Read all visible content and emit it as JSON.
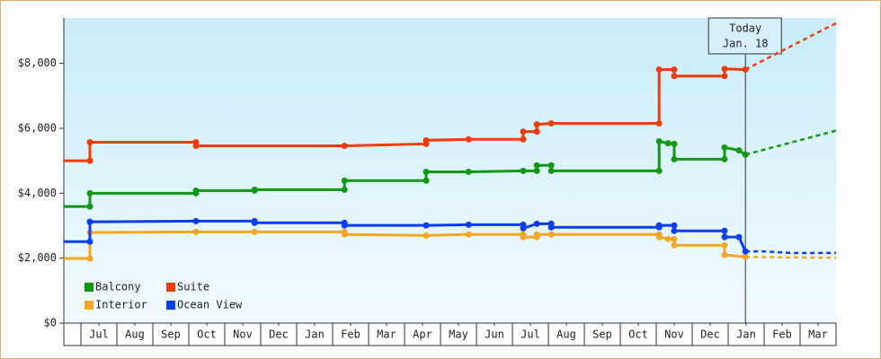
{
  "chart_data": {
    "type": "line",
    "step_markers": true,
    "xlim": [
      0.525,
      22
    ],
    "ylim": [
      0,
      9400
    ],
    "xticks": [
      {
        "value": 1.5,
        "label": "Jul"
      },
      {
        "value": 2.5,
        "label": "Aug"
      },
      {
        "value": 3.5,
        "label": "Sep"
      },
      {
        "value": 4.5,
        "label": "Oct"
      },
      {
        "value": 5.5,
        "label": "Nov"
      },
      {
        "value": 6.5,
        "label": "Dec"
      },
      {
        "value": 7.5,
        "label": "Jan"
      },
      {
        "value": 8.5,
        "label": "Feb"
      },
      {
        "value": 9.5,
        "label": "Mar"
      },
      {
        "value": 10.5,
        "label": "Apr"
      },
      {
        "value": 11.5,
        "label": "May"
      },
      {
        "value": 12.5,
        "label": "Jun"
      },
      {
        "value": 13.5,
        "label": "Jul"
      },
      {
        "value": 14.5,
        "label": "Aug"
      },
      {
        "value": 15.5,
        "label": "Sep"
      },
      {
        "value": 16.5,
        "label": "Oct"
      },
      {
        "value": 17.5,
        "label": "Nov"
      },
      {
        "value": 18.5,
        "label": "Dec"
      },
      {
        "value": 19.5,
        "label": "Jan"
      },
      {
        "value": 20.5,
        "label": "Feb"
      },
      {
        "value": 21.5,
        "label": "Mar"
      }
    ],
    "yticks": [
      {
        "value": 0,
        "label": "$0"
      },
      {
        "value": 2000,
        "label": "$2,000"
      },
      {
        "value": 4000,
        "label": "$4,000"
      },
      {
        "value": 6000,
        "label": "$6,000"
      },
      {
        "value": 8000,
        "label": "$8,000"
      }
    ],
    "annotation": {
      "x": 19.48,
      "title": "Today",
      "date": "Jan. 18"
    },
    "legend": "lower left",
    "series": [
      {
        "name": "Balcony",
        "color": "#109910",
        "x": [
          0.525,
          1.25,
          1.25,
          4.2,
          4.2,
          5.83,
          5.83,
          8.33,
          8.33,
          10.6,
          10.6,
          11.78,
          13.3,
          13.68,
          13.68,
          14.08,
          14.08,
          17.08,
          17.08,
          17.33,
          17.5,
          17.5,
          18.9,
          18.9,
          19.3,
          19.48
        ],
        "values": [
          3590,
          3590,
          4000,
          4000,
          4080,
          4080,
          4110,
          4110,
          4390,
          4390,
          4660,
          4660,
          4690,
          4690,
          4860,
          4860,
          4690,
          4690,
          5600,
          5540,
          5520,
          5050,
          5050,
          5410,
          5320,
          5190
        ],
        "forecast": {
          "x": [
            19.48,
            22
          ],
          "values": [
            5190,
            5930
          ]
        }
      },
      {
        "name": "Suite",
        "color": "#f03c0a",
        "x": [
          0.525,
          1.25,
          1.25,
          4.2,
          4.2,
          8.33,
          10.6,
          10.6,
          11.78,
          13.3,
          13.3,
          13.68,
          13.68,
          14.08,
          17.08,
          17.08,
          17.5,
          17.5,
          18.9,
          18.9,
          19.48
        ],
        "values": [
          5000,
          5000,
          5570,
          5570,
          5460,
          5460,
          5520,
          5630,
          5660,
          5660,
          5900,
          5900,
          6120,
          6150,
          6150,
          7810,
          7810,
          7610,
          7610,
          7830,
          7810
        ],
        "forecast": {
          "x": [
            19.48,
            22
          ],
          "values": [
            7810,
            9240
          ]
        }
      },
      {
        "name": "Interior",
        "color": "#f5a623",
        "x": [
          0.525,
          1.25,
          1.25,
          4.2,
          5.83,
          8.33,
          8.33,
          10.6,
          11.78,
          13.3,
          13.3,
          13.68,
          13.68,
          14.08,
          17.08,
          17.08,
          17.33,
          17.5,
          17.5,
          18.9,
          18.9,
          19.48
        ],
        "values": [
          1990,
          1990,
          2790,
          2810,
          2810,
          2810,
          2730,
          2700,
          2730,
          2730,
          2650,
          2650,
          2730,
          2730,
          2730,
          2650,
          2590,
          2590,
          2400,
          2400,
          2100,
          2040
        ],
        "forecast": {
          "x": [
            19.48,
            22
          ],
          "values": [
            2040,
            2010
          ]
        }
      },
      {
        "name": "Ocean View",
        "color": "#0a3cf0",
        "x": [
          0.525,
          1.25,
          1.25,
          4.2,
          5.83,
          5.83,
          8.33,
          8.33,
          10.6,
          11.78,
          13.3,
          13.3,
          13.68,
          14.08,
          14.08,
          17.08,
          17.08,
          17.5,
          17.5,
          18.9,
          18.9,
          19.3,
          19.48
        ],
        "values": [
          2510,
          2510,
          3120,
          3140,
          3140,
          3090,
          3090,
          3010,
          3010,
          3030,
          3030,
          2920,
          3060,
          3060,
          2950,
          2950,
          3010,
          3010,
          2840,
          2840,
          2650,
          2650,
          2210
        ],
        "forecast": {
          "x": [
            19.48,
            20.0,
            20.75,
            22
          ],
          "values": [
            2210,
            2210,
            2160,
            2160
          ]
        }
      }
    ]
  }
}
